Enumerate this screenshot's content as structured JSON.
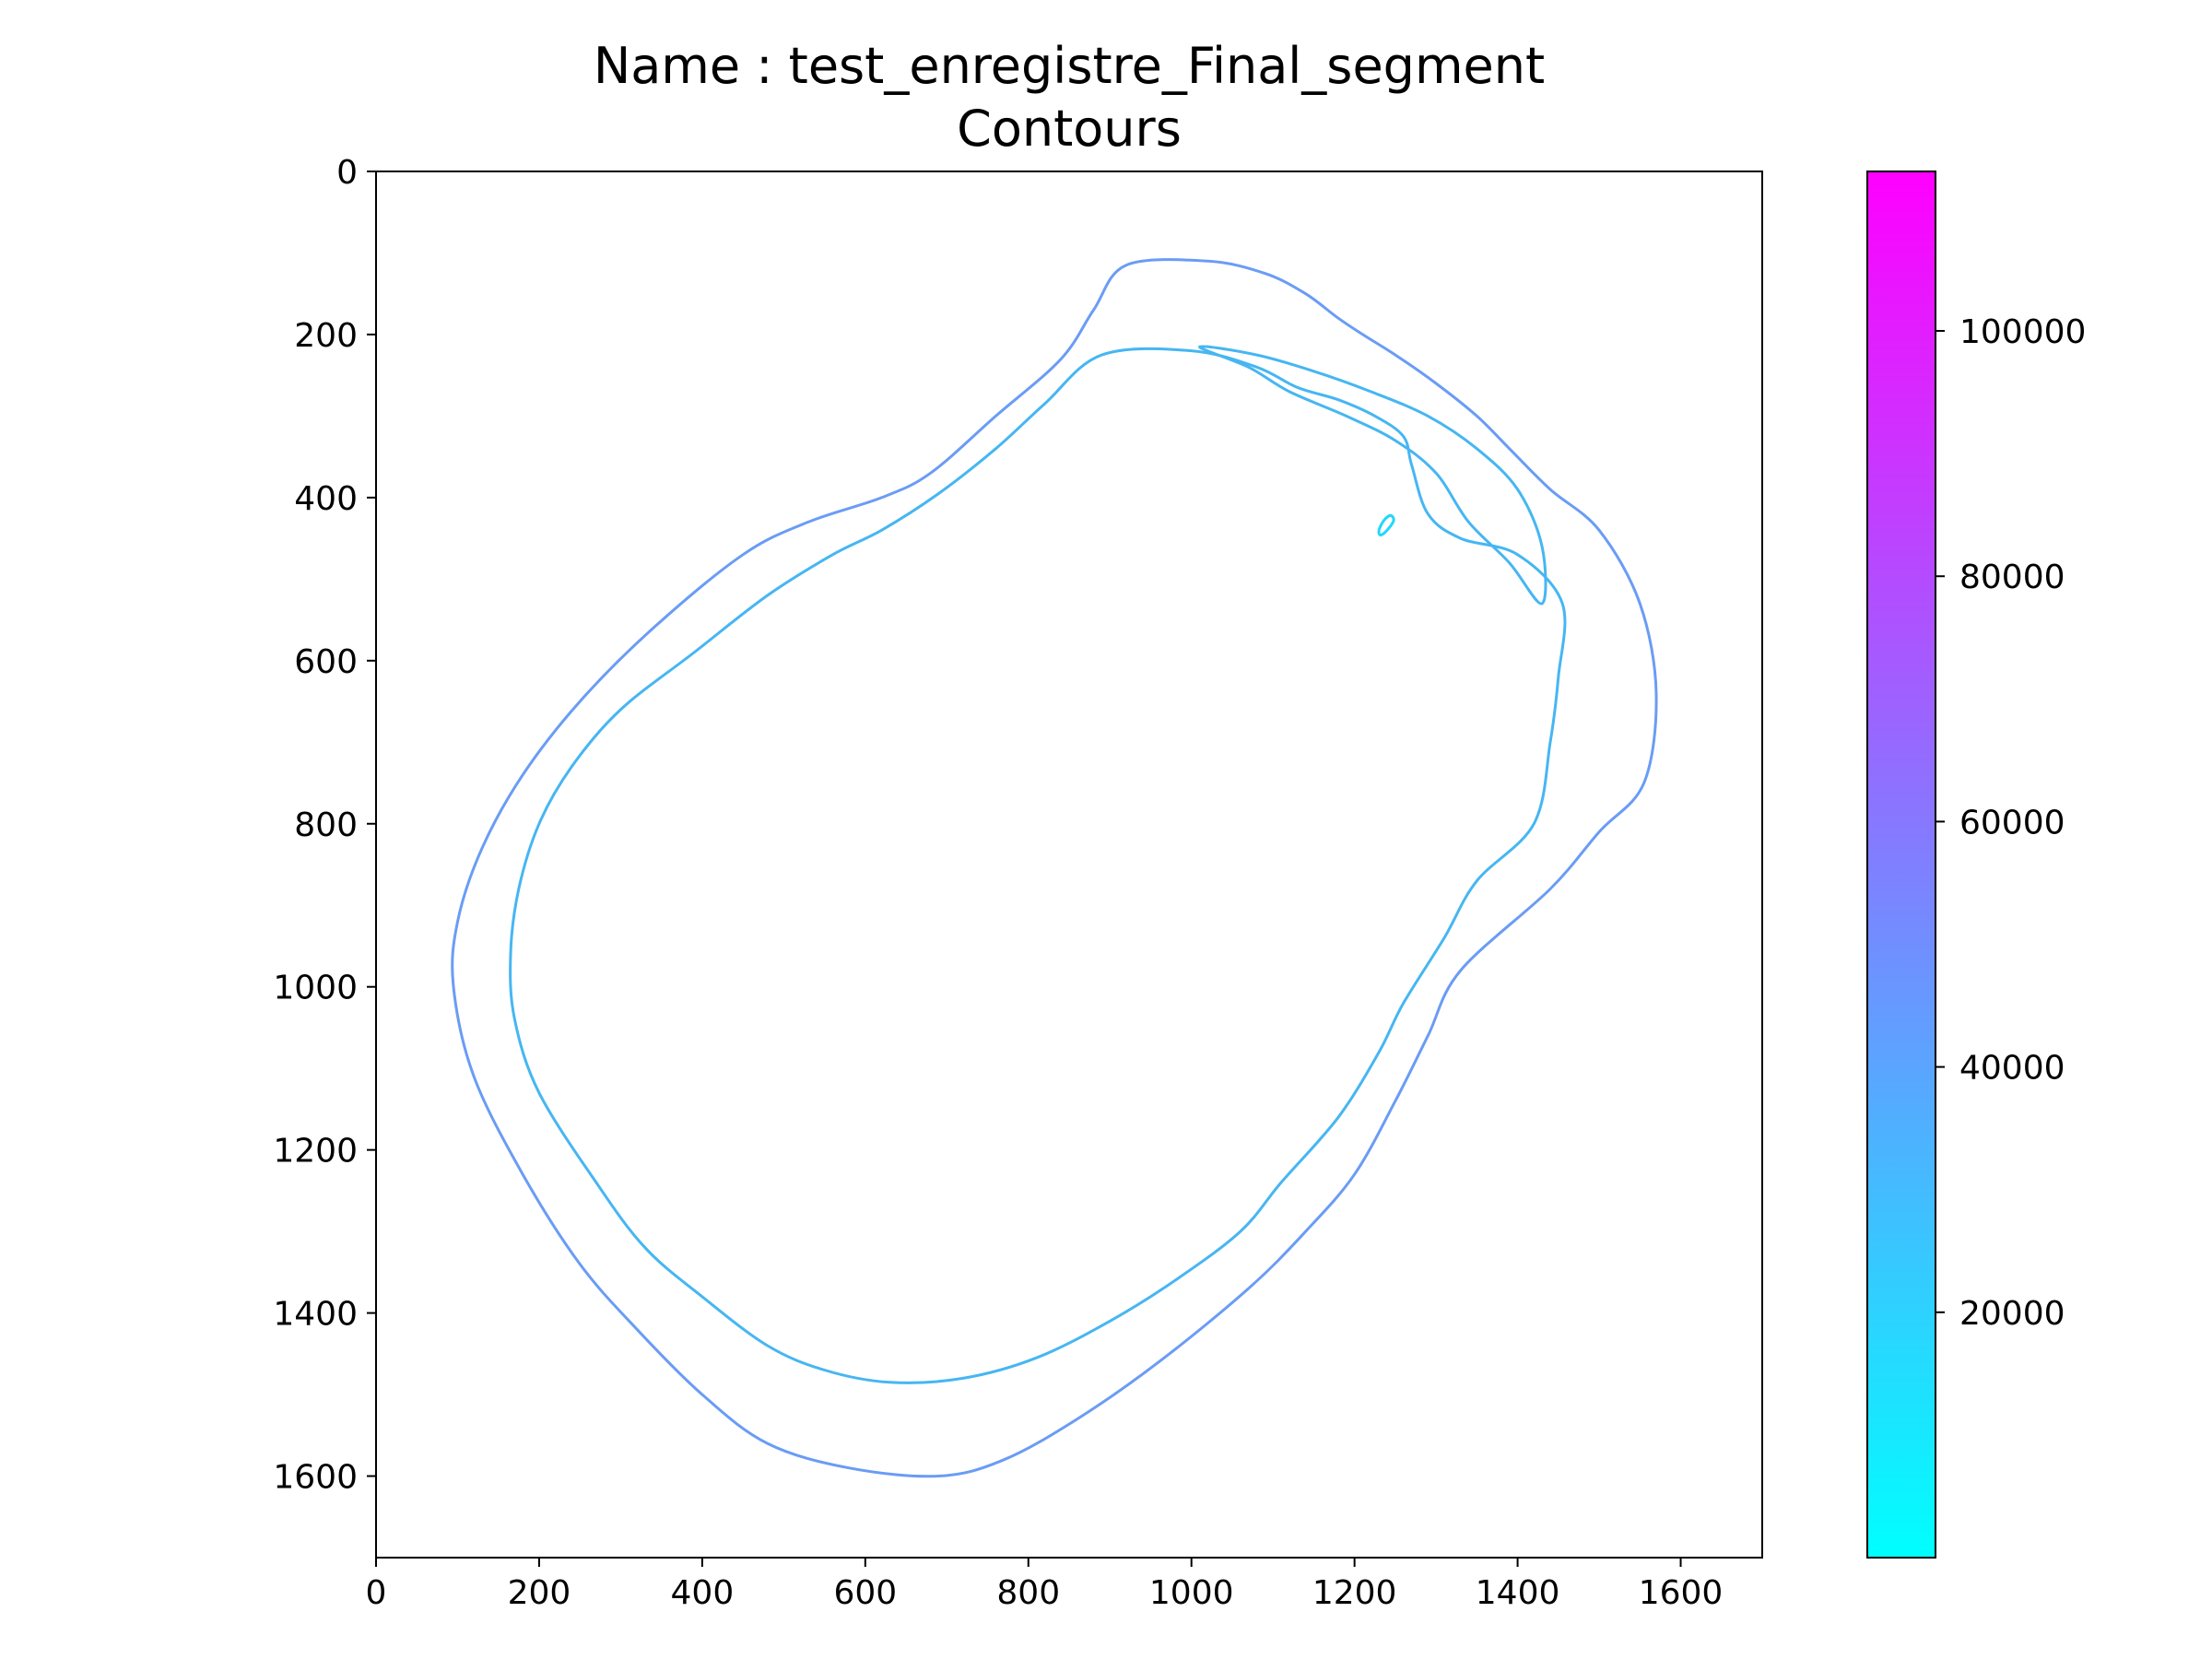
{
  "chart_data": {
    "type": "contour",
    "title": [
      "Name : test_enregistre_Final_segment",
      "Contours"
    ],
    "xlim": [
      0,
      1700
    ],
    "ylim": [
      1700,
      0
    ],
    "y_inverted": true,
    "xticks": [
      0,
      200,
      400,
      600,
      800,
      1000,
      1200,
      1400,
      1600
    ],
    "yticks": [
      0,
      200,
      400,
      600,
      800,
      1000,
      1200,
      1400,
      1600
    ],
    "colorbar": {
      "colormap": "cool",
      "colors": [
        "#00ffff",
        "#ff00ff"
      ],
      "range": [
        0,
        113000
      ],
      "ticks": [
        20000,
        40000,
        60000,
        80000,
        100000
      ]
    },
    "series": [
      {
        "role": "outer-contour",
        "color": "#6a9cf5",
        "points": [
          [
            920,
            115
          ],
          [
            1020,
            110
          ],
          [
            1090,
            125
          ],
          [
            1140,
            150
          ],
          [
            1180,
            180
          ],
          [
            1210,
            200
          ],
          [
            1250,
            225
          ],
          [
            1300,
            260
          ],
          [
            1350,
            300
          ],
          [
            1390,
            340
          ],
          [
            1440,
            390
          ],
          [
            1500,
            440
          ],
          [
            1550,
            530
          ],
          [
            1570,
            640
          ],
          [
            1555,
            750
          ],
          [
            1500,
            810
          ],
          [
            1440,
            880
          ],
          [
            1330,
            980
          ],
          [
            1290,
            1060
          ],
          [
            1250,
            1140
          ],
          [
            1200,
            1230
          ],
          [
            1140,
            1300
          ],
          [
            1070,
            1370
          ],
          [
            960,
            1460
          ],
          [
            860,
            1530
          ],
          [
            770,
            1580
          ],
          [
            690,
            1600
          ],
          [
            580,
            1590
          ],
          [
            480,
            1560
          ],
          [
            400,
            1500
          ],
          [
            320,
            1420
          ],
          [
            250,
            1340
          ],
          [
            180,
            1230
          ],
          [
            120,
            1110
          ],
          [
            95,
            1000
          ],
          [
            100,
            920
          ],
          [
            130,
            830
          ],
          [
            180,
            740
          ],
          [
            250,
            650
          ],
          [
            340,
            560
          ],
          [
            450,
            470
          ],
          [
            530,
            430
          ],
          [
            620,
            400
          ],
          [
            680,
            370
          ],
          [
            760,
            300
          ],
          [
            840,
            230
          ],
          [
            880,
            170
          ]
        ]
      },
      {
        "role": "inner-contour",
        "color": "#46b6f2",
        "points": [
          [
            890,
            225
          ],
          [
            1000,
            220
          ],
          [
            1080,
            240
          ],
          [
            1130,
            265
          ],
          [
            1180,
            280
          ],
          [
            1225,
            300
          ],
          [
            1260,
            325
          ],
          [
            1270,
            360
          ],
          [
            1290,
            420
          ],
          [
            1330,
            450
          ],
          [
            1400,
            470
          ],
          [
            1455,
            530
          ],
          [
            1450,
            620
          ],
          [
            1440,
            700
          ],
          [
            1420,
            800
          ],
          [
            1350,
            870
          ],
          [
            1310,
            940
          ],
          [
            1260,
            1020
          ],
          [
            1230,
            1080
          ],
          [
            1180,
            1160
          ],
          [
            1110,
            1240
          ],
          [
            1060,
            1300
          ],
          [
            980,
            1360
          ],
          [
            900,
            1410
          ],
          [
            810,
            1455
          ],
          [
            720,
            1480
          ],
          [
            630,
            1485
          ],
          [
            550,
            1470
          ],
          [
            480,
            1440
          ],
          [
            400,
            1380
          ],
          [
            330,
            1320
          ],
          [
            270,
            1240
          ],
          [
            200,
            1130
          ],
          [
            170,
            1040
          ],
          [
            165,
            960
          ],
          [
            175,
            880
          ],
          [
            200,
            800
          ],
          [
            240,
            730
          ],
          [
            300,
            660
          ],
          [
            390,
            590
          ],
          [
            480,
            520
          ],
          [
            560,
            470
          ],
          [
            620,
            440
          ],
          [
            690,
            395
          ],
          [
            760,
            340
          ],
          [
            820,
            285
          ]
        ]
      },
      {
        "role": "right-chamber-contour",
        "color": "#46b6f2",
        "points": [
          [
            1010,
            215
          ],
          [
            1070,
            240
          ],
          [
            1120,
            270
          ],
          [
            1190,
            300
          ],
          [
            1250,
            330
          ],
          [
            1300,
            370
          ],
          [
            1340,
            430
          ],
          [
            1390,
            480
          ],
          [
            1430,
            530
          ],
          [
            1430,
            460
          ],
          [
            1400,
            390
          ],
          [
            1350,
            340
          ],
          [
            1290,
            300
          ],
          [
            1220,
            270
          ],
          [
            1150,
            245
          ],
          [
            1080,
            225
          ]
        ]
      },
      {
        "role": "small-island",
        "color": "#22d8f8",
        "points": [
          [
            1230,
            440
          ],
          [
            1236,
            428
          ],
          [
            1244,
            422
          ],
          [
            1248,
            428
          ],
          [
            1240,
            440
          ],
          [
            1232,
            446
          ]
        ]
      }
    ]
  }
}
